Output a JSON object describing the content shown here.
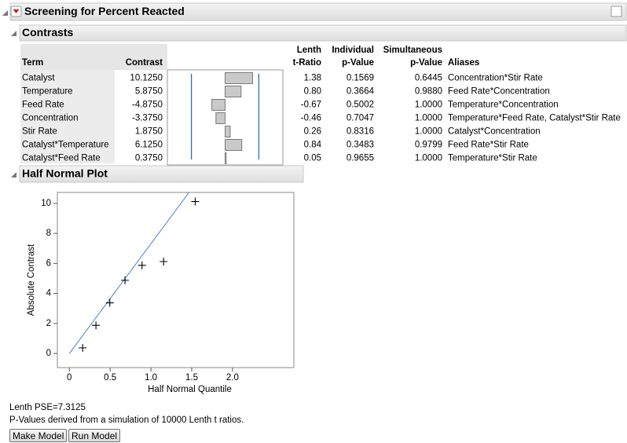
{
  "header": {
    "title": "Screening for Percent Reacted"
  },
  "contrasts": {
    "title": "Contrasts",
    "columns": {
      "term": "Term",
      "contrast": "Contrast",
      "t_ratio": [
        "Lenth",
        "t-Ratio"
      ],
      "individual": [
        "Individual",
        "p-Value"
      ],
      "simultaneous": [
        "Simultaneous",
        "p-Value"
      ],
      "aliases": "Aliases"
    },
    "bar_lim": [
      -21.25,
      21.25
    ],
    "reference_lines": [
      -12.4,
      12.4
    ],
    "rows": [
      {
        "term": "Catalyst",
        "contrast": 10.125,
        "contrast_label": "10.1250",
        "t_ratio": "1.38",
        "individual": "0.1569",
        "simultaneous": "0.6445",
        "aliases": "Concentration*Stir Rate"
      },
      {
        "term": "Temperature",
        "contrast": 5.875,
        "contrast_label": "5.8750",
        "t_ratio": "0.80",
        "individual": "0.3664",
        "simultaneous": "0.9880",
        "aliases": "Feed Rate*Concentration"
      },
      {
        "term": "Feed Rate",
        "contrast": -4.875,
        "contrast_label": "-4.8750",
        "t_ratio": "-0.67",
        "individual": "0.5002",
        "simultaneous": "1.0000",
        "aliases": "Temperature*Concentration"
      },
      {
        "term": "Concentration",
        "contrast": -3.375,
        "contrast_label": "-3.3750",
        "t_ratio": "-0.46",
        "individual": "0.7047",
        "simultaneous": "1.0000",
        "aliases": "Temperature*Feed Rate, Catalyst*Stir Rate"
      },
      {
        "term": "Stir Rate",
        "contrast": 1.875,
        "contrast_label": "1.8750",
        "t_ratio": "0.26",
        "individual": "0.8316",
        "simultaneous": "1.0000",
        "aliases": "Catalyst*Concentration"
      },
      {
        "term": "Catalyst*Temperature",
        "contrast": 6.125,
        "contrast_label": "6.1250",
        "t_ratio": "0.84",
        "individual": "0.3483",
        "simultaneous": "0.9799",
        "aliases": "Feed Rate*Stir Rate"
      },
      {
        "term": "Catalyst*Feed Rate",
        "contrast": 0.375,
        "contrast_label": "0.3750",
        "t_ratio": "0.05",
        "individual": "0.9655",
        "simultaneous": "1.0000",
        "aliases": "Temperature*Stir Rate"
      }
    ]
  },
  "chart_data": {
    "type": "scatter",
    "title": "Half Normal Plot",
    "x_label": "Half Normal Quantile",
    "y_label": "Absolute Contrast",
    "x": [
      0.163,
      0.326,
      0.496,
      0.682,
      0.891,
      1.155,
      1.543
    ],
    "y": [
      0.375,
      1.875,
      3.375,
      4.875,
      5.875,
      6.125,
      10.125
    ],
    "color": "#000000",
    "line": {
      "x": [
        0,
        1.467
      ],
      "y": [
        0,
        10.73
      ],
      "color": "#4a7fd4"
    },
    "xlim": [
      -0.147,
      2.752
    ],
    "ylim": [
      -0.94,
      10.73
    ],
    "xticks": [
      0,
      0.5,
      {
        "value": 1,
        "label": "1.0"
      },
      1.5,
      {
        "value": 2,
        "label": "2.0"
      }
    ],
    "yticks": [
      0,
      2,
      4,
      6,
      8,
      10
    ]
  },
  "footer": {
    "pse": "Lenth PSE=7.3125",
    "note": "P-Values derived from a simulation of 10000 Lenth t ratios.",
    "buttons": [
      "Make Model",
      "Run Model"
    ]
  }
}
